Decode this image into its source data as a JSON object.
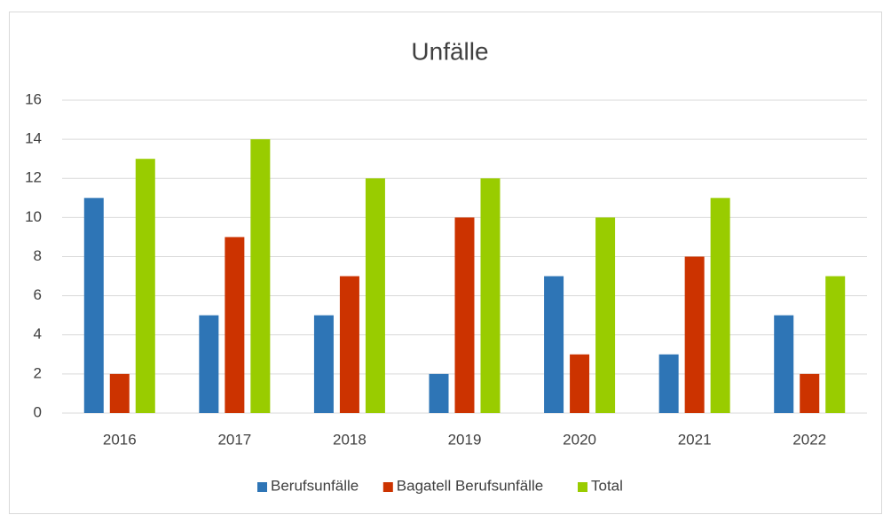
{
  "chart_data": {
    "type": "bar",
    "title": "Unfälle",
    "categories": [
      "2016",
      "2017",
      "2018",
      "2019",
      "2020",
      "2021",
      "2022"
    ],
    "series": [
      {
        "name": "Berufsunfälle",
        "color": "#2e75b6",
        "values": [
          11,
          5,
          5,
          2,
          7,
          3,
          5
        ]
      },
      {
        "name": "Bagatell Berufsunfälle",
        "color": "#cc3300",
        "values": [
          2,
          9,
          7,
          10,
          3,
          8,
          2
        ]
      },
      {
        "name": "Total",
        "color": "#99cc00",
        "values": [
          13,
          14,
          12,
          12,
          10,
          11,
          7
        ]
      }
    ],
    "ylim": [
      0,
      16
    ],
    "yticks": [
      0,
      2,
      4,
      6,
      8,
      10,
      12,
      14,
      16
    ],
    "grid": true,
    "legend": "bottom"
  }
}
